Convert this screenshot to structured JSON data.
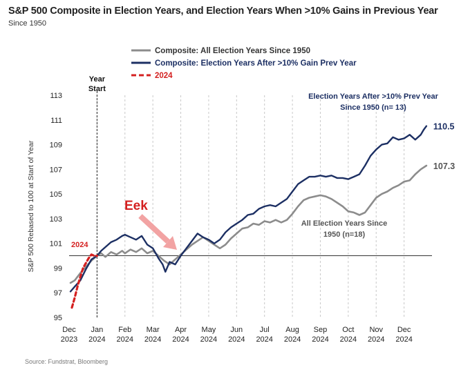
{
  "header": {
    "title": "S&P 500 Composite in Election Years, and Election Years When >10% Gains in Previous Year",
    "subtitle": "Since 1950"
  },
  "source": "Source: Fundstrat, Bloomberg",
  "colors": {
    "composite": "#8c8c8c",
    "after_gain": "#1c2f63",
    "y2024": "#d42020",
    "annotation": "#e05050"
  },
  "chart_data": {
    "type": "line",
    "ylabel": "S&P 500 Rebased to 100 at Start of Year",
    "ylim": [
      95,
      113
    ],
    "yticks": [
      95,
      97,
      99,
      101,
      103,
      105,
      107,
      109,
      111,
      113
    ],
    "xlim": [
      -1,
      12
    ],
    "xticks": [
      {
        "x": -1,
        "l1": "Dec",
        "l2": "2023"
      },
      {
        "x": 0,
        "l1": "Jan",
        "l2": "2024"
      },
      {
        "x": 1,
        "l1": "Feb",
        "l2": "2024"
      },
      {
        "x": 2,
        "l1": "Mar",
        "l2": "2024"
      },
      {
        "x": 3,
        "l1": "Apr",
        "l2": "2024"
      },
      {
        "x": 4,
        "l1": "May",
        "l2": "2024"
      },
      {
        "x": 5,
        "l1": "Jun",
        "l2": "2024"
      },
      {
        "x": 6,
        "l1": "Jul",
        "l2": "2024"
      },
      {
        "x": 7,
        "l1": "Aug",
        "l2": "2024"
      },
      {
        "x": 8,
        "l1": "Sep",
        "l2": "2024"
      },
      {
        "x": 9,
        "l1": "Oct",
        "l2": "2024"
      },
      {
        "x": 10,
        "l1": "Nov",
        "l2": "2024"
      },
      {
        "x": 11,
        "l1": "Dec",
        "l2": "2024"
      }
    ],
    "baseline": 100,
    "year_start_label": [
      "Year",
      "Start"
    ],
    "legend": [
      {
        "label": "Composite: All Election Years Since 1950",
        "series": "composite"
      },
      {
        "label": "Composite: Election Years After >10% Gain Prev Year",
        "series": "after_gain"
      },
      {
        "label": "2024",
        "series": "y2024"
      }
    ],
    "series": [
      {
        "key": "composite",
        "name": "Composite: All Election Years Since 1950",
        "points": [
          [
            -0.95,
            97.8
          ],
          [
            -0.8,
            98.0
          ],
          [
            -0.6,
            98.6
          ],
          [
            -0.4,
            99.1
          ],
          [
            -0.2,
            99.6
          ],
          [
            0,
            100.0
          ],
          [
            0.15,
            100.2
          ],
          [
            0.3,
            99.9
          ],
          [
            0.5,
            100.3
          ],
          [
            0.7,
            100.1
          ],
          [
            0.9,
            100.4
          ],
          [
            1.0,
            100.2
          ],
          [
            1.2,
            100.5
          ],
          [
            1.4,
            100.3
          ],
          [
            1.6,
            100.6
          ],
          [
            1.8,
            100.2
          ],
          [
            2.0,
            100.4
          ],
          [
            2.2,
            100.0
          ],
          [
            2.4,
            99.6
          ],
          [
            2.6,
            99.3
          ],
          [
            2.8,
            99.7
          ],
          [
            3.0,
            100.1
          ],
          [
            3.2,
            100.5
          ],
          [
            3.4,
            100.9
          ],
          [
            3.6,
            101.2
          ],
          [
            3.8,
            101.5
          ],
          [
            4.0,
            101.2
          ],
          [
            4.2,
            100.9
          ],
          [
            4.4,
            100.6
          ],
          [
            4.6,
            100.9
          ],
          [
            4.8,
            101.4
          ],
          [
            5.0,
            101.8
          ],
          [
            5.2,
            102.2
          ],
          [
            5.4,
            102.3
          ],
          [
            5.6,
            102.6
          ],
          [
            5.8,
            102.5
          ],
          [
            6.0,
            102.8
          ],
          [
            6.2,
            102.7
          ],
          [
            6.4,
            102.9
          ],
          [
            6.6,
            102.7
          ],
          [
            6.8,
            102.9
          ],
          [
            7.0,
            103.4
          ],
          [
            7.2,
            104.0
          ],
          [
            7.4,
            104.5
          ],
          [
            7.6,
            104.7
          ],
          [
            7.8,
            104.8
          ],
          [
            8.0,
            104.9
          ],
          [
            8.2,
            104.8
          ],
          [
            8.4,
            104.6
          ],
          [
            8.6,
            104.3
          ],
          [
            8.8,
            104.0
          ],
          [
            9.0,
            103.6
          ],
          [
            9.2,
            103.5
          ],
          [
            9.4,
            103.3
          ],
          [
            9.6,
            103.5
          ],
          [
            9.8,
            104.1
          ],
          [
            10.0,
            104.7
          ],
          [
            10.2,
            105.0
          ],
          [
            10.4,
            105.2
          ],
          [
            10.6,
            105.5
          ],
          [
            10.8,
            105.7
          ],
          [
            11.0,
            106.0
          ],
          [
            11.2,
            106.1
          ],
          [
            11.4,
            106.6
          ],
          [
            11.6,
            107.0
          ],
          [
            11.8,
            107.3
          ]
        ]
      },
      {
        "key": "after_gain",
        "name": "Composite: Election Years After >10% Gain Prev Year",
        "points": [
          [
            -0.95,
            97.1
          ],
          [
            -0.8,
            97.5
          ],
          [
            -0.6,
            98.0
          ],
          [
            -0.4,
            98.9
          ],
          [
            -0.2,
            99.7
          ],
          [
            0,
            100.0
          ],
          [
            0.15,
            100.4
          ],
          [
            0.3,
            100.7
          ],
          [
            0.5,
            101.1
          ],
          [
            0.7,
            101.3
          ],
          [
            0.9,
            101.6
          ],
          [
            1.0,
            101.7
          ],
          [
            1.2,
            101.5
          ],
          [
            1.4,
            101.3
          ],
          [
            1.6,
            101.6
          ],
          [
            1.8,
            100.9
          ],
          [
            2.0,
            100.6
          ],
          [
            2.2,
            99.8
          ],
          [
            2.35,
            99.3
          ],
          [
            2.45,
            98.7
          ],
          [
            2.6,
            99.5
          ],
          [
            2.8,
            99.3
          ],
          [
            3.0,
            100.0
          ],
          [
            3.2,
            100.6
          ],
          [
            3.4,
            101.2
          ],
          [
            3.6,
            101.8
          ],
          [
            3.8,
            101.5
          ],
          [
            4.0,
            101.3
          ],
          [
            4.2,
            101.0
          ],
          [
            4.4,
            101.3
          ],
          [
            4.6,
            101.9
          ],
          [
            4.8,
            102.3
          ],
          [
            5.0,
            102.6
          ],
          [
            5.2,
            102.9
          ],
          [
            5.4,
            103.3
          ],
          [
            5.6,
            103.4
          ],
          [
            5.8,
            103.8
          ],
          [
            6.0,
            104.0
          ],
          [
            6.2,
            104.1
          ],
          [
            6.4,
            104.0
          ],
          [
            6.6,
            104.3
          ],
          [
            6.8,
            104.6
          ],
          [
            7.0,
            105.2
          ],
          [
            7.2,
            105.8
          ],
          [
            7.4,
            106.1
          ],
          [
            7.6,
            106.4
          ],
          [
            7.8,
            106.4
          ],
          [
            8.0,
            106.5
          ],
          [
            8.2,
            106.4
          ],
          [
            8.4,
            106.5
          ],
          [
            8.6,
            106.3
          ],
          [
            8.8,
            106.3
          ],
          [
            9.0,
            106.2
          ],
          [
            9.2,
            106.4
          ],
          [
            9.4,
            106.6
          ],
          [
            9.6,
            107.3
          ],
          [
            9.8,
            108.1
          ],
          [
            10.0,
            108.6
          ],
          [
            10.2,
            109.0
          ],
          [
            10.4,
            109.1
          ],
          [
            10.6,
            109.6
          ],
          [
            10.8,
            109.4
          ],
          [
            11.0,
            109.5
          ],
          [
            11.2,
            109.8
          ],
          [
            11.4,
            109.4
          ],
          [
            11.6,
            109.8
          ],
          [
            11.7,
            110.2
          ],
          [
            11.8,
            110.5
          ]
        ]
      },
      {
        "key": "y2024",
        "name": "2024",
        "dashed": true,
        "points": [
          [
            -0.9,
            95.8
          ],
          [
            -0.8,
            96.6
          ],
          [
            -0.7,
            97.5
          ],
          [
            -0.6,
            98.3
          ],
          [
            -0.5,
            99.0
          ],
          [
            -0.4,
            99.4
          ],
          [
            -0.3,
            99.8
          ],
          [
            -0.2,
            100.1
          ],
          [
            -0.1,
            100.0
          ],
          [
            0,
            100.0
          ]
        ]
      }
    ],
    "end_labels": [
      {
        "series": "after_gain",
        "text": "110.5"
      },
      {
        "series": "composite",
        "text": "107.3"
      }
    ],
    "annotations": {
      "after_gain_note": [
        "Election Years After >10% Prev Year",
        "Since 1950 (n= 13)"
      ],
      "composite_note": [
        "All Election Years Since",
        "1950 (n=18)"
      ],
      "y2024_label": "2024",
      "eek_label": "Eek"
    }
  }
}
